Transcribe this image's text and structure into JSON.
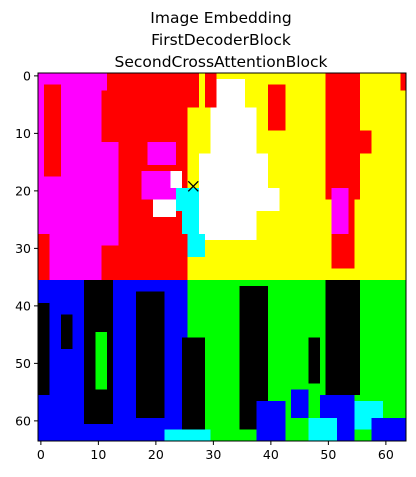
{
  "chart_data": {
    "type": "heatmap",
    "title_lines": [
      "Image Embedding",
      "FirstDecoderBlock",
      "SecondCrossAttentionBlock"
    ],
    "xlabel": "",
    "ylabel": "",
    "xlim": [
      -0.5,
      63.5
    ],
    "ylim": [
      63.5,
      -0.5
    ],
    "x_ticks": [
      0,
      10,
      20,
      30,
      40,
      50,
      60
    ],
    "y_ticks": [
      0,
      10,
      20,
      30,
      40,
      50,
      60
    ],
    "grid": false,
    "marker": {
      "symbol": "x",
      "x": 26.5,
      "y": 19.2,
      "color": "#000000"
    },
    "palette": {
      "red": "#ff0000",
      "magenta": "#ff00ff",
      "yellow": "#ffff00",
      "white": "#ffffff",
      "cyan": "#00ffff",
      "blue": "#0000ff",
      "green": "#00ff00",
      "black": "#000000"
    },
    "regions": [
      {
        "color": "red",
        "x0": 0,
        "x1": 26,
        "y0": 0,
        "y1": 36
      },
      {
        "color": "yellow",
        "x0": 26,
        "x1": 64,
        "y0": 0,
        "y1": 36
      },
      {
        "color": "magenta",
        "x0": 0,
        "x1": 11,
        "y0": 0,
        "y1": 36
      },
      {
        "color": "magenta",
        "x0": 11,
        "x1": 13,
        "y0": 0,
        "y1": 3
      },
      {
        "color": "magenta",
        "x0": 11,
        "x1": 14,
        "y0": 12,
        "y1": 30
      },
      {
        "color": "magenta",
        "x0": 18,
        "x1": 24,
        "y0": 17,
        "y1": 22
      },
      {
        "color": "red",
        "x0": 1,
        "x1": 4,
        "y0": 2,
        "y1": 18
      },
      {
        "color": "red",
        "x0": 12,
        "x1": 22,
        "y0": 0,
        "y1": 12
      },
      {
        "color": "red",
        "x0": 24,
        "x1": 28,
        "y0": 0,
        "y1": 6
      },
      {
        "color": "red",
        "x0": 0,
        "x1": 2,
        "y0": 28,
        "y1": 36
      },
      {
        "color": "magenta",
        "x0": 19,
        "x1": 24,
        "y0": 12,
        "y1": 16
      },
      {
        "color": "red",
        "x0": 29,
        "x1": 31,
        "y0": 0,
        "y1": 6
      },
      {
        "color": "red",
        "x0": 40,
        "x1": 43,
        "y0": 2,
        "y1": 10
      },
      {
        "color": "red",
        "x0": 50,
        "x1": 56,
        "y0": 0,
        "y1": 22
      },
      {
        "color": "red",
        "x0": 51,
        "x1": 55,
        "y0": 22,
        "y1": 34
      },
      {
        "color": "magenta",
        "x0": 51,
        "x1": 54,
        "y0": 20,
        "y1": 28
      },
      {
        "color": "red",
        "x0": 56,
        "x1": 58,
        "y0": 10,
        "y1": 14
      },
      {
        "color": "red",
        "x0": 63,
        "x1": 64,
        "y0": 0,
        "y1": 3
      },
      {
        "color": "white",
        "x0": 31,
        "x1": 36,
        "y0": 1,
        "y1": 6
      },
      {
        "color": "white",
        "x0": 30,
        "x1": 38,
        "y0": 6,
        "y1": 14
      },
      {
        "color": "white",
        "x0": 28,
        "x1": 40,
        "y0": 14,
        "y1": 20
      },
      {
        "color": "white",
        "x0": 27,
        "x1": 42,
        "y0": 20,
        "y1": 24
      },
      {
        "color": "white",
        "x0": 28,
        "x1": 38,
        "y0": 24,
        "y1": 29
      },
      {
        "color": "white",
        "x0": 20,
        "x1": 24,
        "y0": 22,
        "y1": 25
      },
      {
        "color": "cyan",
        "x0": 24,
        "x1": 28,
        "y0": 20,
        "y1": 24
      },
      {
        "color": "cyan",
        "x0": 25,
        "x1": 28,
        "y0": 24,
        "y1": 28
      },
      {
        "color": "cyan",
        "x0": 26,
        "x1": 29,
        "y0": 28,
        "y1": 32
      },
      {
        "color": "white",
        "x0": 23,
        "x1": 25,
        "y0": 17,
        "y1": 20
      },
      {
        "color": "blue",
        "x0": 0,
        "x1": 26,
        "y0": 36,
        "y1": 64
      },
      {
        "color": "green",
        "x0": 26,
        "x1": 64,
        "y0": 36,
        "y1": 64
      },
      {
        "color": "black",
        "x0": 8,
        "x1": 13,
        "y0": 36,
        "y1": 61
      },
      {
        "color": "green",
        "x0": 10,
        "x1": 12,
        "y0": 45,
        "y1": 55
      },
      {
        "color": "black",
        "x0": 17,
        "x1": 22,
        "y0": 38,
        "y1": 60
      },
      {
        "color": "black",
        "x0": 0,
        "x1": 2,
        "y0": 40,
        "y1": 56
      },
      {
        "color": "black",
        "x0": 4,
        "x1": 6,
        "y0": 42,
        "y1": 48
      },
      {
        "color": "blue",
        "x0": 22,
        "x1": 26,
        "y0": 57,
        "y1": 62
      },
      {
        "color": "black",
        "x0": 25,
        "x1": 29,
        "y0": 46,
        "y1": 62
      },
      {
        "color": "black",
        "x0": 35,
        "x1": 40,
        "y0": 37,
        "y1": 62
      },
      {
        "color": "black",
        "x0": 50,
        "x1": 56,
        "y0": 36,
        "y1": 56
      },
      {
        "color": "blue",
        "x0": 49,
        "x1": 55,
        "y0": 56,
        "y1": 64
      },
      {
        "color": "blue",
        "x0": 38,
        "x1": 43,
        "y0": 57,
        "y1": 64
      },
      {
        "color": "blue",
        "x0": 44,
        "x1": 47,
        "y0": 55,
        "y1": 60
      },
      {
        "color": "cyan",
        "x0": 22,
        "x1": 30,
        "y0": 62,
        "y1": 64
      },
      {
        "color": "cyan",
        "x0": 55,
        "x1": 60,
        "y0": 57,
        "y1": 62
      },
      {
        "color": "cyan",
        "x0": 47,
        "x1": 52,
        "y0": 60,
        "y1": 64
      },
      {
        "color": "blue",
        "x0": 58,
        "x1": 64,
        "y0": 60,
        "y1": 64
      },
      {
        "color": "black",
        "x0": 47,
        "x1": 49,
        "y0": 46,
        "y1": 54
      },
      {
        "color": "green",
        "x0": 42,
        "x1": 45,
        "y0": 36,
        "y1": 50
      }
    ]
  }
}
